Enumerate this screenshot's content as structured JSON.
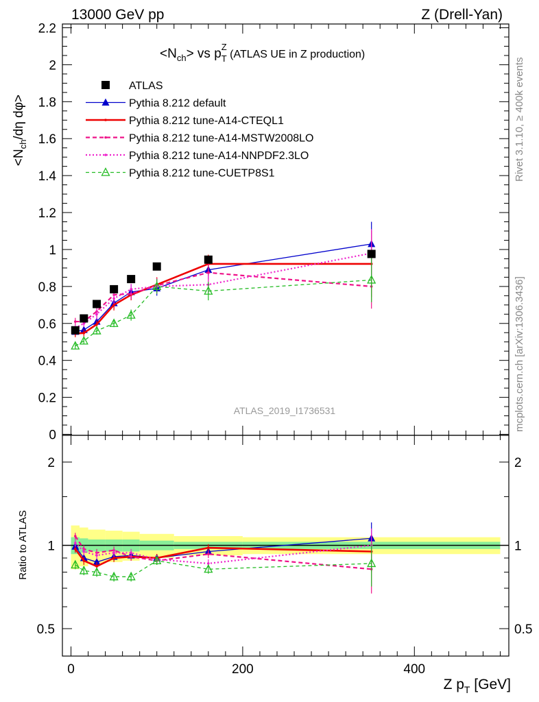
{
  "header": {
    "left": "13000 GeV pp",
    "right": "Z (Drell-Yan)"
  },
  "title": {
    "pre": "<N",
    "pre_sub": "ch",
    "mid": "> vs p",
    "mid_sub": "T",
    "mid_sup": "Z",
    "post": " (ATLAS UE in Z production)"
  },
  "side_labels": {
    "rivet": "Rivet 3.1.10, ≥ 400k events",
    "mcplots": "mcplots.cern.ch [arXiv:1306.3436]"
  },
  "watermark": "ATLAS_2019_I1736531",
  "colors": {
    "data": "#000000",
    "default": "#0000cc",
    "cteql1": "#ee0000",
    "mstw": "#ee1188",
    "nnpdf": "#ee22cc",
    "cuetp8s1": "#22bb22",
    "band_inner": "#88ee99",
    "band_outer": "#ffff88"
  },
  "chart_data": [
    {
      "type": "line",
      "panel": "main",
      "ylabel": "<N_ch/dη dφ>",
      "xlim": [
        -10,
        510
      ],
      "ylim": [
        0,
        2.2
      ],
      "yticks": [
        "0",
        "0.2",
        "0.4",
        "0.6",
        "0.8",
        "1",
        "1.2",
        "1.4",
        "1.6",
        "1.8",
        "2",
        "2.2"
      ],
      "grid": false,
      "legend_position": "top-left",
      "x": [
        5,
        15,
        30,
        50,
        70,
        100,
        160,
        350
      ],
      "series": [
        {
          "name": "ATLAS",
          "key": "data",
          "style": "marker",
          "values": [
            0.563,
            0.627,
            0.705,
            0.785,
            0.84,
            0.908,
            0.945,
            0.976
          ],
          "errors": [
            0.01,
            0.01,
            0.01,
            0.01,
            0.01,
            0.01,
            0.01,
            0.01
          ]
        },
        {
          "name": "Pythia 8.212 default",
          "key": "default",
          "style": "solid-thin",
          "marker": "triangle-filled",
          "values": [
            0.555,
            0.565,
            0.61,
            0.71,
            0.77,
            0.79,
            0.89,
            1.03
          ],
          "errors": [
            0.02,
            0.02,
            0.03,
            0.03,
            0.04,
            0.04,
            0.05,
            0.12
          ]
        },
        {
          "name": "Pythia 8.212 tune-A14-CTEQL1",
          "key": "cteql1",
          "style": "solid-thick",
          "values": [
            0.545,
            0.548,
            0.595,
            0.7,
            0.755,
            0.81,
            0.922,
            0.922
          ],
          "errors": [
            0.02,
            0.02,
            0.02,
            0.03,
            0.03,
            0.04,
            0.05,
            0.18
          ]
        },
        {
          "name": "Pythia 8.212 tune-A14-MSTW2008LO",
          "key": "mstw",
          "style": "dashed",
          "values": [
            0.61,
            0.61,
            0.665,
            0.755,
            0.76,
            0.805,
            0.875,
            0.8
          ],
          "errors": [
            0.02,
            0.02,
            0.03,
            0.03,
            0.03,
            0.04,
            0.05,
            0.12
          ]
        },
        {
          "name": "Pythia 8.212 tune-A14-NNPDF2.3LO",
          "key": "nnpdf",
          "style": "dotted",
          "values": [
            0.575,
            0.6,
            0.65,
            0.735,
            0.785,
            0.8,
            0.81,
            0.98
          ],
          "errors": [
            0.02,
            0.02,
            0.03,
            0.03,
            0.03,
            0.04,
            0.05,
            0.13
          ]
        },
        {
          "name": "Pythia 8.212 tune-CUETP8S1",
          "key": "cuetp8s1",
          "style": "dashed-thin",
          "marker": "triangle-open",
          "values": [
            0.478,
            0.505,
            0.56,
            0.6,
            0.645,
            0.8,
            0.775,
            0.835
          ],
          "errors": [
            0.015,
            0.015,
            0.02,
            0.02,
            0.03,
            0.04,
            0.05,
            0.12
          ]
        }
      ]
    },
    {
      "type": "line",
      "panel": "ratio",
      "ylabel": "Ratio to ATLAS",
      "xlabel": "Z p_T [GeV]",
      "xlim": [
        -10,
        510
      ],
      "xticks": [
        "0",
        "200",
        "400"
      ],
      "ylim": [
        0.4,
        2.4
      ],
      "yscale": "log",
      "yticks": [
        "0.5",
        "1",
        "2"
      ],
      "band": {
        "x_edges": [
          0,
          10,
          20,
          40,
          60,
          80,
          120,
          200,
          500
        ],
        "inner_half_width": [
          0.07,
          0.06,
          0.05,
          0.05,
          0.05,
          0.04,
          0.03,
          0.03
        ],
        "outer_half_width": [
          0.18,
          0.16,
          0.14,
          0.13,
          0.12,
          0.1,
          0.08,
          0.07
        ]
      },
      "x": [
        5,
        15,
        30,
        50,
        70,
        100,
        160,
        350
      ],
      "series": [
        {
          "name": "Pythia 8.212 default",
          "key": "default",
          "values": [
            0.99,
            0.9,
            0.87,
            0.91,
            0.92,
            0.9,
            0.95,
            1.06
          ]
        },
        {
          "name": "Pythia 8.212 tune-A14-CTEQL1",
          "key": "cteql1",
          "values": [
            0.97,
            0.88,
            0.84,
            0.9,
            0.91,
            0.9,
            0.98,
            0.95
          ]
        },
        {
          "name": "Pythia 8.212 tune-A14-MSTW2008LO",
          "key": "mstw",
          "values": [
            1.08,
            0.97,
            0.94,
            0.96,
            0.91,
            0.88,
            0.93,
            0.82
          ]
        },
        {
          "name": "Pythia 8.212 tune-A14-NNPDF2.3LO",
          "key": "nnpdf",
          "values": [
            1.02,
            0.95,
            0.92,
            0.94,
            0.94,
            0.89,
            0.86,
            1.0
          ]
        },
        {
          "name": "Pythia 8.212 tune-CUETP8S1",
          "key": "cuetp8s1",
          "values": [
            0.85,
            0.81,
            0.8,
            0.77,
            0.77,
            0.88,
            0.82,
            0.86
          ]
        }
      ]
    }
  ],
  "axis_labels": {
    "xlabel_main": "Z p",
    "xlabel_sub": "T",
    "xlabel_unit": " [GeV]",
    "ylabel_pre": "<N",
    "ylabel_sub": "ch",
    "ylabel_post": "/dη dφ>",
    "ratio_ylabel": "Ratio to ATLAS"
  }
}
